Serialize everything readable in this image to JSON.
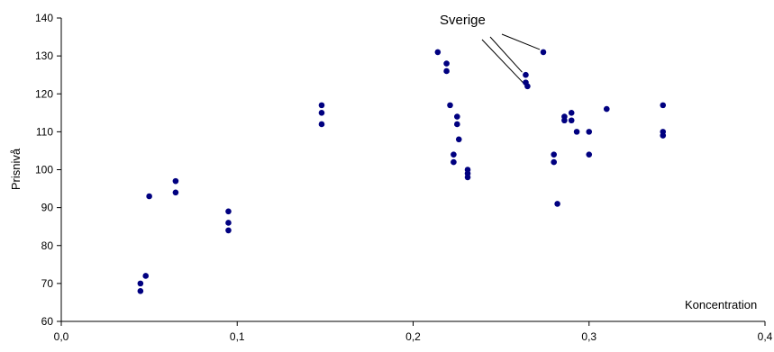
{
  "chart_data": {
    "type": "scatter",
    "xlabel": "Koncentration",
    "ylabel": "Prisnivå",
    "xlim": [
      0,
      0.4
    ],
    "ylim": [
      60,
      140
    ],
    "x_ticks": [
      "0,0",
      "0,1",
      "0,2",
      "0,3",
      "0,4"
    ],
    "y_ticks": [
      "60",
      "70",
      "80",
      "90",
      "100",
      "110",
      "120",
      "130",
      "140"
    ],
    "grid": false,
    "legend": "none",
    "colors": {
      "points": "#000080",
      "axes": "#000000"
    },
    "series": [
      {
        "points": [
          [
            0.045,
            70
          ],
          [
            0.045,
            68
          ],
          [
            0.048,
            72
          ],
          [
            0.05,
            93
          ],
          [
            0.065,
            97
          ],
          [
            0.065,
            94
          ],
          [
            0.095,
            89
          ],
          [
            0.095,
            86
          ],
          [
            0.095,
            84
          ],
          [
            0.148,
            117
          ],
          [
            0.148,
            115
          ],
          [
            0.148,
            112
          ],
          [
            0.214,
            131
          ],
          [
            0.219,
            128
          ],
          [
            0.219,
            126
          ],
          [
            0.221,
            117
          ],
          [
            0.223,
            104
          ],
          [
            0.223,
            102
          ],
          [
            0.225,
            114
          ],
          [
            0.225,
            112
          ],
          [
            0.226,
            108
          ],
          [
            0.231,
            100
          ],
          [
            0.231,
            99
          ],
          [
            0.231,
            98
          ],
          [
            0.264,
            125
          ],
          [
            0.264,
            123
          ],
          [
            0.265,
            122
          ],
          [
            0.274,
            131
          ],
          [
            0.28,
            104
          ],
          [
            0.28,
            102
          ],
          [
            0.282,
            91
          ],
          [
            0.286,
            114
          ],
          [
            0.286,
            113
          ],
          [
            0.29,
            115
          ],
          [
            0.29,
            113
          ],
          [
            0.293,
            110
          ],
          [
            0.3,
            110
          ],
          [
            0.3,
            104
          ],
          [
            0.31,
            116
          ],
          [
            0.342,
            117
          ],
          [
            0.342,
            110
          ],
          [
            0.342,
            109
          ]
        ]
      }
    ],
    "annotations": [
      {
        "text": "Sverige",
        "targets": [
          [
            0.274,
            131
          ],
          [
            0.264,
            125
          ],
          [
            0.265,
            122
          ]
        ]
      }
    ]
  }
}
